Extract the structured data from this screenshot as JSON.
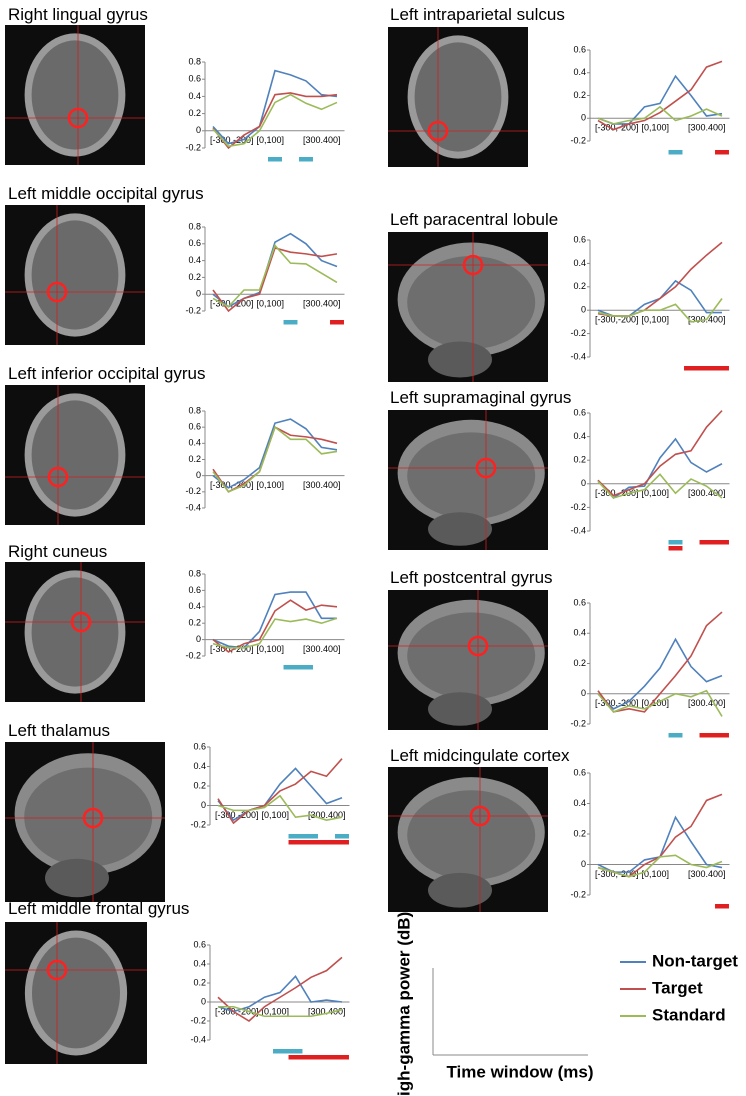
{
  "chart_data": [
    {
      "type": "line",
      "title": "Right lingual gyrus",
      "categories": [
        "[-300,-200]",
        null,
        null,
        "[0,100]",
        null,
        null,
        "[300.400]",
        null,
        null
      ],
      "ylim": [
        -0.2,
        0.8
      ],
      "yticks": [
        -0.2,
        0,
        0.2,
        0.4,
        0.6,
        0.8
      ],
      "series": [
        {
          "name": "Non-target",
          "color": "#4f81bd",
          "values": [
            0.05,
            -0.15,
            -0.1,
            0.05,
            0.7,
            0.65,
            0.58,
            0.42,
            0.4
          ]
        },
        {
          "name": "Target",
          "color": "#c0504d",
          "values": [
            0.03,
            -0.2,
            -0.05,
            0.05,
            0.42,
            0.44,
            0.4,
            0.4,
            0.42
          ]
        },
        {
          "name": "Standard",
          "color": "#9bbb59",
          "values": [
            0.02,
            -0.18,
            -0.15,
            0.0,
            0.33,
            0.42,
            0.32,
            0.25,
            0.33
          ]
        }
      ],
      "significance": [
        {
          "series": 0,
          "color": "#4bacc6",
          "windows": [
            4
          ]
        },
        {
          "series": 0,
          "color": "#4bacc6",
          "windows": [
            6
          ]
        }
      ]
    },
    {
      "type": "line",
      "title": "Left middle occipital gyrus",
      "categories": [
        "[-300,-200]",
        null,
        null,
        "[0,100]",
        null,
        null,
        "[300.400]",
        null,
        null
      ],
      "ylim": [
        -0.2,
        0.8
      ],
      "yticks": [
        -0.2,
        0,
        0.2,
        0.4,
        0.6,
        0.8
      ],
      "series": [
        {
          "name": "Non-target",
          "color": "#4f81bd",
          "values": [
            0,
            -0.15,
            -0.05,
            0.02,
            0.62,
            0.72,
            0.6,
            0.4,
            0.33
          ]
        },
        {
          "name": "Target",
          "color": "#c0504d",
          "values": [
            0.05,
            -0.2,
            -0.05,
            0,
            0.55,
            0.5,
            0.48,
            0.45,
            0.48
          ]
        },
        {
          "name": "Standard",
          "color": "#9bbb59",
          "values": [
            -0.05,
            -0.15,
            0.05,
            0.05,
            0.58,
            0.37,
            0.36,
            0.25,
            0.14
          ]
        }
      ],
      "significance": [
        {
          "series": 0,
          "color": "#4bacc6",
          "windows": [
            5
          ]
        },
        {
          "series": 1,
          "color": "#e02020",
          "windows": [
            8
          ]
        }
      ]
    },
    {
      "type": "line",
      "title": "Left inferior occipital gyrus",
      "categories": [
        "[-300,-200]",
        null,
        null,
        "[0,100]",
        null,
        null,
        "[300.400]",
        null,
        null
      ],
      "ylim": [
        -0.4,
        0.8
      ],
      "yticks": [
        -0.4,
        -0.2,
        0,
        0.2,
        0.4,
        0.6,
        0.8
      ],
      "series": [
        {
          "name": "Non-target",
          "color": "#4f81bd",
          "values": [
            0.0,
            -0.15,
            -0.05,
            0.1,
            0.65,
            0.7,
            0.58,
            0.35,
            0.32
          ]
        },
        {
          "name": "Target",
          "color": "#c0504d",
          "values": [
            0.08,
            -0.2,
            -0.1,
            0.05,
            0.6,
            0.5,
            0.48,
            0.45,
            0.4
          ]
        },
        {
          "name": "Standard",
          "color": "#9bbb59",
          "values": [
            0.05,
            -0.2,
            -0.12,
            0.05,
            0.6,
            0.45,
            0.45,
            0.27,
            0.3
          ]
        }
      ],
      "significance": []
    },
    {
      "type": "line",
      "title": "Right cuneus",
      "categories": [
        "[-300,-200]",
        null,
        null,
        "[0,100]",
        null,
        null,
        "[300.400]",
        null,
        null
      ],
      "ylim": [
        -0.2,
        0.8
      ],
      "yticks": [
        -0.2,
        0,
        0.2,
        0.4,
        0.6,
        0.8
      ],
      "series": [
        {
          "name": "Non-target",
          "color": "#4f81bd",
          "values": [
            0,
            -0.08,
            -0.1,
            0.1,
            0.55,
            0.58,
            0.58,
            0.26,
            0.26
          ]
        },
        {
          "name": "Target",
          "color": "#c0504d",
          "values": [
            0,
            -0.15,
            -0.05,
            0,
            0.35,
            0.48,
            0.36,
            0.42,
            0.4
          ]
        },
        {
          "name": "Standard",
          "color": "#9bbb59",
          "values": [
            -0.05,
            -0.1,
            -0.1,
            -0.05,
            0.25,
            0.22,
            0.25,
            0.2,
            0.26
          ]
        }
      ],
      "significance": [
        {
          "series": 0,
          "color": "#4bacc6",
          "windows": [
            5,
            6
          ]
        }
      ]
    },
    {
      "type": "line",
      "title": "Left thalamus",
      "categories": [
        "[-300,-200]",
        null,
        null,
        "[0,100]",
        null,
        null,
        "[300.400]",
        null,
        null
      ],
      "ylim": [
        -0.2,
        0.6
      ],
      "yticks": [
        -0.2,
        0,
        0.2,
        0.4,
        0.6
      ],
      "series": [
        {
          "name": "Non-target",
          "color": "#4f81bd",
          "values": [
            0.05,
            -0.15,
            -0.05,
            0,
            0.22,
            0.38,
            0.2,
            0.02,
            0.08
          ]
        },
        {
          "name": "Target",
          "color": "#c0504d",
          "values": [
            0.07,
            -0.18,
            -0.05,
            0,
            0.15,
            0.22,
            0.35,
            0.3,
            0.48
          ]
        },
        {
          "name": "Standard",
          "color": "#9bbb59",
          "values": [
            0.0,
            -0.05,
            -0.05,
            -0.02,
            0.1,
            -0.12,
            -0.1,
            -0.15,
            -0.12
          ]
        }
      ],
      "significance": [
        {
          "series": 0,
          "color": "#4bacc6",
          "windows": [
            5,
            6
          ]
        },
        {
          "series": 0,
          "color": "#4bacc6",
          "windows": [
            8
          ]
        },
        {
          "series": 1,
          "color": "#e02020",
          "windows": [
            5,
            6,
            7,
            8
          ]
        }
      ]
    },
    {
      "type": "line",
      "title": "Left middle frontal gyrus",
      "categories": [
        "[-300,-200]",
        null,
        null,
        "[0,100]",
        null,
        null,
        "[300.400]",
        null,
        null
      ],
      "ylim": [
        -0.4,
        0.6
      ],
      "yticks": [
        -0.4,
        -0.2,
        0,
        0.2,
        0.4,
        0.6
      ],
      "series": [
        {
          "name": "Non-target",
          "color": "#4f81bd",
          "values": [
            -0.05,
            -0.1,
            -0.05,
            0.05,
            0.1,
            0.27,
            0.0,
            0.02,
            0.0
          ]
        },
        {
          "name": "Target",
          "color": "#c0504d",
          "values": [
            0.05,
            -0.1,
            -0.2,
            -0.05,
            0.05,
            0.15,
            0.26,
            0.33,
            0.47
          ]
        },
        {
          "name": "Standard",
          "color": "#9bbb59",
          "values": [
            -0.05,
            -0.05,
            -0.1,
            -0.15,
            -0.15,
            -0.15,
            -0.15,
            -0.12,
            -0.08
          ]
        }
      ],
      "significance": [
        {
          "series": 0,
          "color": "#4bacc6",
          "windows": [
            4,
            5
          ]
        },
        {
          "series": 1,
          "color": "#e02020",
          "windows": [
            5,
            6,
            7,
            8
          ]
        }
      ]
    },
    {
      "type": "line",
      "title": "Left intraparietal sulcus",
      "categories": [
        "[-300,-200]",
        null,
        null,
        "[0,100]",
        null,
        null,
        "[300.400]",
        null,
        null
      ],
      "ylim": [
        -0.2,
        0.6
      ],
      "yticks": [
        -0.2,
        0,
        0.2,
        0.4,
        0.6
      ],
      "series": [
        {
          "name": "Non-target",
          "color": "#4f81bd",
          "values": [
            0,
            -0.05,
            -0.05,
            0.1,
            0.13,
            0.37,
            0.2,
            0.02,
            0.04
          ]
        },
        {
          "name": "Target",
          "color": "#c0504d",
          "values": [
            -0.02,
            -0.1,
            -0.05,
            -0.02,
            0.05,
            0.15,
            0.25,
            0.45,
            0.5
          ]
        },
        {
          "name": "Standard",
          "color": "#9bbb59",
          "values": [
            0,
            -0.05,
            -0.02,
            0.0,
            0.1,
            -0.02,
            0.02,
            0.08,
            0.02
          ]
        }
      ],
      "significance": [
        {
          "series": 0,
          "color": "#4bacc6",
          "windows": [
            5
          ]
        },
        {
          "series": 1,
          "color": "#e02020",
          "windows": [
            8
          ]
        }
      ]
    },
    {
      "type": "line",
      "title": "Left paracentral lobule",
      "categories": [
        "[-300,-200]",
        null,
        null,
        "[0,100]",
        null,
        null,
        "[300.400]",
        null,
        null
      ],
      "ylim": [
        -0.4,
        0.6
      ],
      "yticks": [
        -0.4,
        -0.2,
        0,
        0.2,
        0.4,
        0.6
      ],
      "series": [
        {
          "name": "Non-target",
          "color": "#4f81bd",
          "values": [
            0,
            -0.05,
            -0.05,
            0.05,
            0.1,
            0.25,
            0.17,
            -0.02,
            -0.02
          ]
        },
        {
          "name": "Target",
          "color": "#c0504d",
          "values": [
            -0.03,
            -0.05,
            -0.05,
            0.0,
            0.1,
            0.2,
            0.35,
            0.47,
            0.58
          ]
        },
        {
          "name": "Standard",
          "color": "#9bbb59",
          "values": [
            -0.02,
            -0.05,
            -0.05,
            0,
            0.0,
            0.05,
            -0.1,
            -0.08,
            0.1
          ]
        }
      ],
      "significance": [
        {
          "series": 1,
          "color": "#e02020",
          "windows": [
            6,
            7,
            8
          ]
        }
      ]
    },
    {
      "type": "line",
      "title": "Left supramaginal gyrus",
      "categories": [
        "[-300,-200]",
        null,
        null,
        "[0,100]",
        null,
        null,
        "[300.400]",
        null,
        null
      ],
      "ylim": [
        -0.4,
        0.6
      ],
      "yticks": [
        -0.4,
        -0.2,
        0,
        0.2,
        0.4,
        0.6
      ],
      "series": [
        {
          "name": "Non-target",
          "color": "#4f81bd",
          "values": [
            0.03,
            -0.12,
            -0.03,
            -0.02,
            0.22,
            0.38,
            0.18,
            0.1,
            0.17
          ]
        },
        {
          "name": "Target",
          "color": "#c0504d",
          "values": [
            0.03,
            -0.1,
            -0.05,
            0,
            0.15,
            0.25,
            0.28,
            0.48,
            0.62
          ]
        },
        {
          "name": "Standard",
          "color": "#9bbb59",
          "values": [
            0.02,
            -0.12,
            -0.08,
            -0.05,
            0.08,
            -0.08,
            0.04,
            -0.02,
            -0.12
          ]
        }
      ],
      "significance": [
        {
          "series": 0,
          "color": "#4bacc6",
          "windows": [
            5
          ]
        },
        {
          "series": 1,
          "color": "#e02020",
          "windows": [
            5
          ]
        },
        {
          "series": 1,
          "color": "#e02020",
          "windows": [
            7,
            8
          ]
        }
      ]
    },
    {
      "type": "line",
      "title": "Left postcentral gyrus",
      "categories": [
        "[-300,-200]",
        null,
        null,
        "[0,100]",
        null,
        null,
        "[300.400]",
        null,
        null
      ],
      "ylim": [
        -0.2,
        0.6
      ],
      "yticks": [
        -0.2,
        0,
        0.2,
        0.4,
        0.6
      ],
      "series": [
        {
          "name": "Non-target",
          "color": "#4f81bd",
          "values": [
            0.0,
            -0.1,
            -0.05,
            0.05,
            0.17,
            0.36,
            0.18,
            0.08,
            0.12
          ]
        },
        {
          "name": "Target",
          "color": "#c0504d",
          "values": [
            0.02,
            -0.12,
            -0.1,
            -0.12,
            0.0,
            0.12,
            0.25,
            0.45,
            0.54
          ]
        },
        {
          "name": "Standard",
          "color": "#9bbb59",
          "values": [
            0.0,
            -0.12,
            -0.08,
            -0.1,
            -0.05,
            0.0,
            -0.02,
            0.02,
            -0.15
          ]
        }
      ],
      "significance": [
        {
          "series": 0,
          "color": "#4bacc6",
          "windows": [
            5
          ]
        },
        {
          "series": 1,
          "color": "#e02020",
          "windows": [
            7,
            8
          ]
        }
      ]
    },
    {
      "type": "line",
      "title": "Left midcingulate cortex",
      "categories": [
        "[-300,-200]",
        null,
        null,
        "[0,100]",
        null,
        null,
        "[300.400]",
        null,
        null
      ],
      "ylim": [
        -0.2,
        0.6
      ],
      "yticks": [
        -0.2,
        0,
        0.2,
        0.4,
        0.6
      ],
      "series": [
        {
          "name": "Non-target",
          "color": "#4f81bd",
          "values": [
            0.0,
            -0.05,
            -0.05,
            0.03,
            0.05,
            0.31,
            0.15,
            0.0,
            -0.02
          ]
        },
        {
          "name": "Target",
          "color": "#c0504d",
          "values": [
            -0.02,
            -0.05,
            -0.08,
            0,
            0.05,
            0.18,
            0.25,
            0.42,
            0.46
          ]
        },
        {
          "name": "Standard",
          "color": "#9bbb59",
          "values": [
            -0.02,
            -0.05,
            -0.08,
            -0.05,
            0.05,
            0.06,
            0.0,
            -0.02,
            0.02
          ]
        }
      ],
      "significance": [
        {
          "series": 1,
          "color": "#e02020",
          "windows": [
            8
          ]
        }
      ]
    }
  ],
  "legend": {
    "y_label": "High-gamma power (dB)",
    "x_label": "Time window (ms)"
  }
}
